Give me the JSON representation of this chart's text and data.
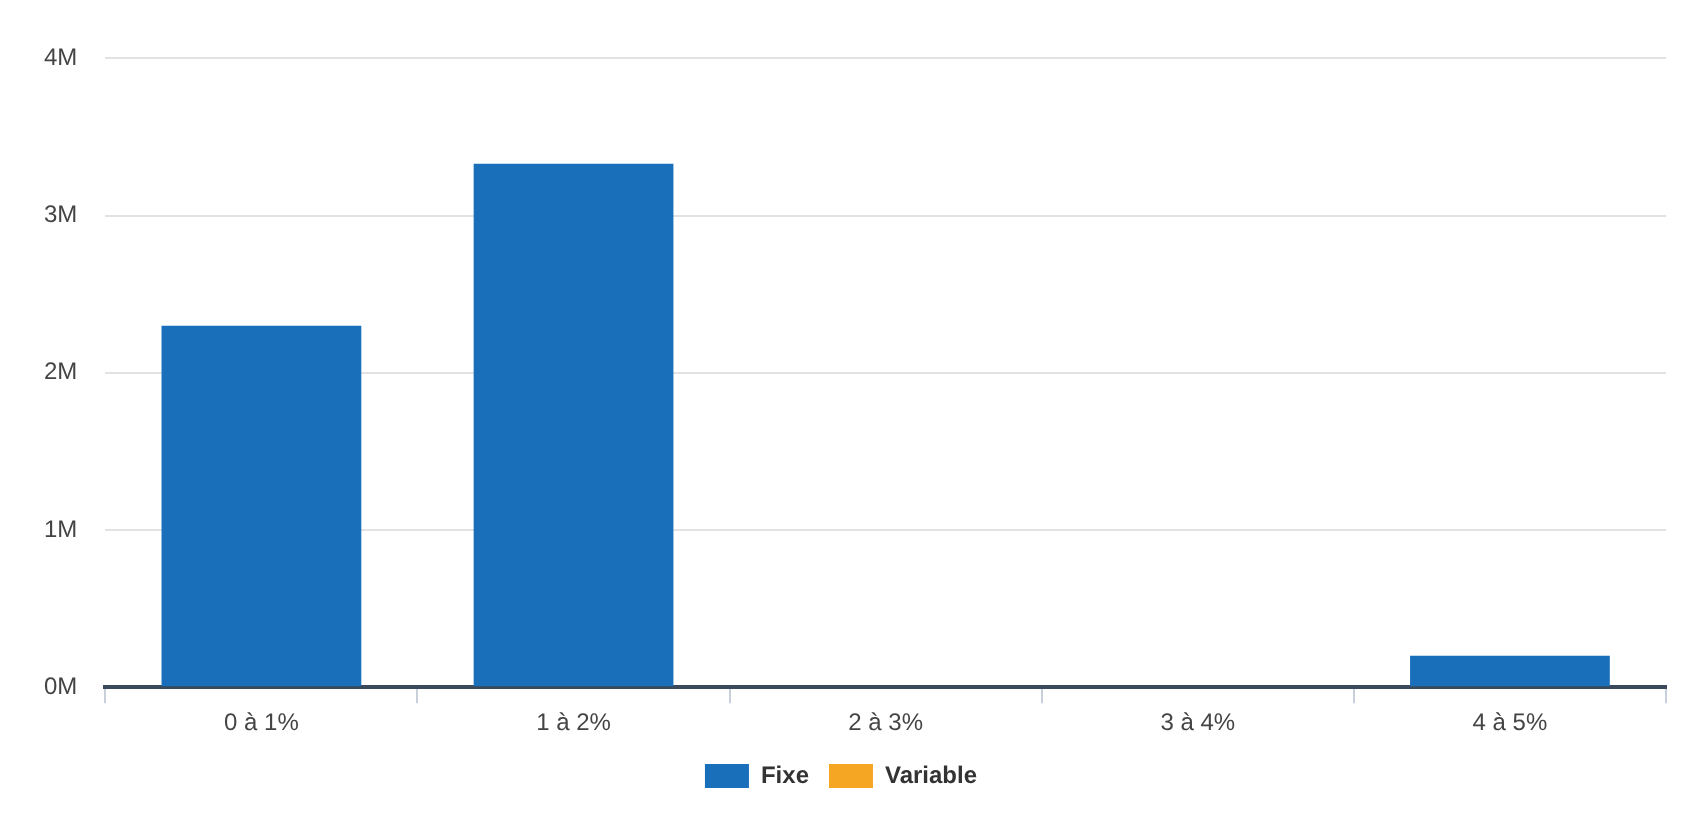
{
  "chart_data": {
    "type": "bar",
    "categories": [
      "0 à 1%",
      "1 à 2%",
      "2 à 3%",
      "3 à 4%",
      "4 à 5%"
    ],
    "series": [
      {
        "name": "Fixe",
        "color": "#1a6fba",
        "values": [
          2300000,
          3330000,
          0,
          0,
          200000
        ]
      },
      {
        "name": "Variable",
        "color": "#f5a623",
        "values": [
          0,
          0,
          0,
          0,
          0
        ]
      }
    ],
    "stacked": true,
    "ylim": [
      0,
      4000000
    ],
    "yticks": [
      {
        "value": 0,
        "label": "0M"
      },
      {
        "value": 1000000,
        "label": "1M"
      },
      {
        "value": 2000000,
        "label": "2M"
      },
      {
        "value": 3000000,
        "label": "3M"
      },
      {
        "value": 4000000,
        "label": "4M"
      }
    ],
    "grid": "y",
    "legend": "bottom"
  }
}
